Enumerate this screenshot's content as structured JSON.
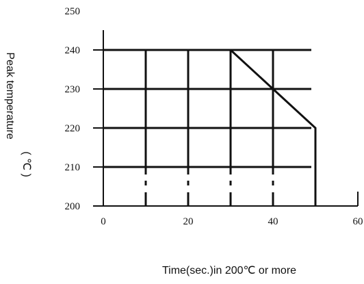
{
  "chart_data": {
    "type": "line",
    "xlabel": "Time(sec.)in 200℃ or more",
    "ylabel": "Peak temperature",
    "ylabel_unit": "( ℃ )",
    "xlim": [
      0,
      60
    ],
    "ylim": [
      200,
      250
    ],
    "x_ticks": [
      "0",
      "20",
      "40",
      "60"
    ],
    "y_ticks": [
      "200",
      "210",
      "220",
      "230",
      "240",
      "250"
    ],
    "grid_horizontal": [
      210,
      220,
      230,
      240
    ],
    "grid_vertical": [
      10,
      20,
      30,
      40,
      50
    ],
    "grid": true,
    "series": [
      {
        "x": [
          0,
          30,
          40,
          50,
          50
        ],
        "y": [
          240,
          240,
          230,
          220,
          200
        ]
      }
    ]
  }
}
